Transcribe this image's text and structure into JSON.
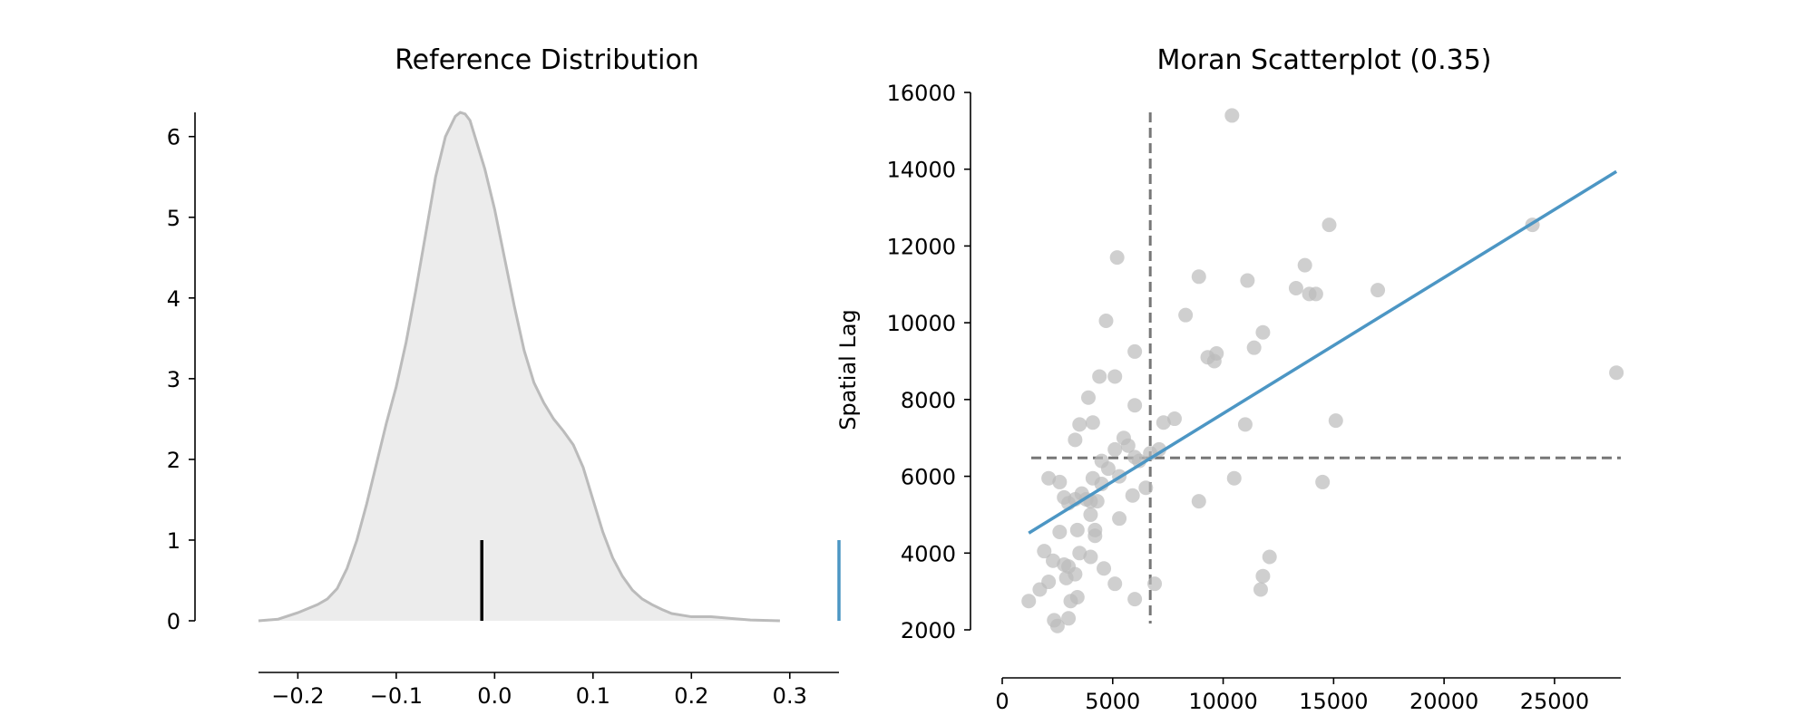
{
  "chart_data": [
    {
      "type": "area",
      "title": "Reference Distribution",
      "xlabel": "",
      "ylabel": "",
      "xlim": [
        -0.24,
        0.35
      ],
      "ylim": [
        0,
        6.3
      ],
      "x_ticks": [
        -0.2,
        -0.1,
        0.0,
        0.1,
        0.2,
        0.3
      ],
      "x_tick_labels": [
        "−0.2",
        "−0.1",
        "0.0",
        "0.1",
        "0.2",
        "0.3"
      ],
      "y_ticks": [
        0,
        1,
        2,
        3,
        4,
        5,
        6
      ],
      "y_tick_labels": [
        "0",
        "1",
        "2",
        "3",
        "4",
        "5",
        "6"
      ],
      "density": {
        "x": [
          -0.24,
          -0.22,
          -0.2,
          -0.18,
          -0.17,
          -0.16,
          -0.15,
          -0.14,
          -0.13,
          -0.12,
          -0.11,
          -0.1,
          -0.09,
          -0.08,
          -0.07,
          -0.06,
          -0.05,
          -0.04,
          -0.035,
          -0.03,
          -0.025,
          -0.02,
          -0.015,
          -0.01,
          0.0,
          0.01,
          0.02,
          0.03,
          0.04,
          0.05,
          0.06,
          0.07,
          0.08,
          0.09,
          0.1,
          0.11,
          0.12,
          0.13,
          0.14,
          0.15,
          0.16,
          0.17,
          0.18,
          0.2,
          0.22,
          0.24,
          0.26,
          0.29
        ],
        "y": [
          0.0,
          0.02,
          0.1,
          0.2,
          0.27,
          0.4,
          0.65,
          1.0,
          1.45,
          1.95,
          2.45,
          2.9,
          3.45,
          4.1,
          4.8,
          5.5,
          6.0,
          6.25,
          6.3,
          6.28,
          6.2,
          6.0,
          5.8,
          5.6,
          5.1,
          4.5,
          3.9,
          3.35,
          2.95,
          2.7,
          2.5,
          2.35,
          2.18,
          1.9,
          1.5,
          1.1,
          0.78,
          0.55,
          0.38,
          0.27,
          0.2,
          0.14,
          0.09,
          0.05,
          0.05,
          0.03,
          0.01,
          0.0
        ]
      },
      "observed_marker": {
        "x": -0.013,
        "height": 1.0,
        "color": "#000000"
      },
      "statistic_marker": {
        "x": 0.35,
        "height": 1.0,
        "color": "#4c96c4"
      },
      "fill_color": "#ececec",
      "line_color": "#bbbbbb",
      "grid": false
    },
    {
      "type": "scatter",
      "title": "Moran Scatterplot (0.35)",
      "xlabel": "",
      "ylabel": "Spatial Lag",
      "xlim": [
        0,
        28000
      ],
      "ylim": [
        2000,
        16000
      ],
      "x_ticks": [
        0,
        5000,
        10000,
        15000,
        20000,
        25000
      ],
      "x_tick_labels": [
        "0",
        "5000",
        "10000",
        "15000",
        "20000",
        "25000"
      ],
      "y_ticks": [
        2000,
        4000,
        6000,
        8000,
        10000,
        12000,
        14000,
        16000
      ],
      "y_tick_labels": [
        "2000",
        "4000",
        "6000",
        "8000",
        "10000",
        "12000",
        "14000",
        "16000"
      ],
      "point_color": "#bbbbbb",
      "points": [
        [
          1200,
          2750
        ],
        [
          1700,
          3050
        ],
        [
          2100,
          3250
        ],
        [
          2350,
          2250
        ],
        [
          2500,
          2100
        ],
        [
          2900,
          3350
        ],
        [
          3100,
          2750
        ],
        [
          3000,
          2300
        ],
        [
          3300,
          3450
        ],
        [
          3400,
          2850
        ],
        [
          1900,
          4050
        ],
        [
          2300,
          3800
        ],
        [
          2600,
          4550
        ],
        [
          2800,
          3700
        ],
        [
          3000,
          3650
        ],
        [
          3500,
          4000
        ],
        [
          4000,
          3900
        ],
        [
          4600,
          3600
        ],
        [
          5100,
          3200
        ],
        [
          6000,
          2800
        ],
        [
          6900,
          3200
        ],
        [
          2100,
          5950
        ],
        [
          2600,
          5850
        ],
        [
          2800,
          5450
        ],
        [
          3000,
          5300
        ],
        [
          3300,
          5400
        ],
        [
          3600,
          5550
        ],
        [
          3800,
          5400
        ],
        [
          4000,
          5350
        ],
        [
          4100,
          5950
        ],
        [
          4300,
          5350
        ],
        [
          3400,
          4600
        ],
        [
          4000,
          5000
        ],
        [
          4200,
          4600
        ],
        [
          4200,
          4450
        ],
        [
          5300,
          4900
        ],
        [
          4500,
          6400
        ],
        [
          4800,
          6200
        ],
        [
          5100,
          6700
        ],
        [
          5500,
          7000
        ],
        [
          5700,
          6800
        ],
        [
          6000,
          6500
        ],
        [
          6200,
          6400
        ],
        [
          5900,
          5500
        ],
        [
          4500,
          5800
        ],
        [
          5300,
          6000
        ],
        [
          6700,
          6600
        ],
        [
          7100,
          6700
        ],
        [
          3300,
          6950
        ],
        [
          3500,
          7350
        ],
        [
          4100,
          7400
        ],
        [
          7300,
          7400
        ],
        [
          7800,
          7500
        ],
        [
          3900,
          8050
        ],
        [
          4400,
          8600
        ],
        [
          5100,
          8600
        ],
        [
          6000,
          7850
        ],
        [
          4700,
          10050
        ],
        [
          6000,
          9250
        ],
        [
          5200,
          11700
        ],
        [
          6500,
          5700
        ],
        [
          8300,
          10200
        ],
        [
          8900,
          11200
        ],
        [
          9300,
          9100
        ],
        [
          9700,
          9200
        ],
        [
          9600,
          9000
        ],
        [
          11100,
          11100
        ],
        [
          11400,
          9350
        ],
        [
          11800,
          9750
        ],
        [
          13300,
          10900
        ],
        [
          13700,
          11500
        ],
        [
          13900,
          10750
        ],
        [
          14200,
          10750
        ],
        [
          14800,
          12550
        ],
        [
          17000,
          10850
        ],
        [
          8900,
          5350
        ],
        [
          10500,
          5950
        ],
        [
          11000,
          7350
        ],
        [
          15100,
          7450
        ],
        [
          14500,
          5850
        ],
        [
          12100,
          3900
        ],
        [
          11800,
          3400
        ],
        [
          11700,
          3050
        ],
        [
          10400,
          15400
        ],
        [
          24000,
          12550
        ],
        [
          27800,
          8700
        ]
      ],
      "fit_line": {
        "x": [
          1200,
          27800
        ],
        "y": [
          4520,
          13940
        ],
        "color": "#4c96c4"
      },
      "mean_lines": {
        "x": 6700,
        "y": 6480,
        "color": "#777777"
      },
      "grid": false
    }
  ]
}
